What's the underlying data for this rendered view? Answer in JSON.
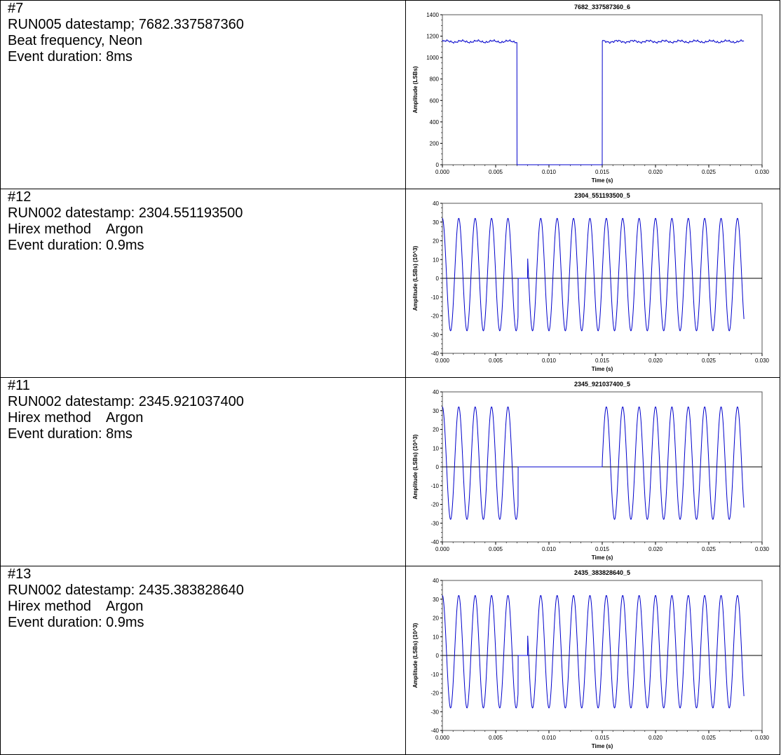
{
  "rows": [
    {
      "lines": [
        "#7",
        "RUN005 datestamp; 7682.337587360",
        "Beat frequency, Neon",
        "Event duration: 8ms"
      ]
    },
    {
      "lines": [
        "#12",
        "RUN002 datestamp: 2304.551193500",
        "Hirex method    Argon",
        "Event duration: 0.9ms"
      ]
    },
    {
      "lines": [
        "#11",
        "RUN002 datestamp: 2345.921037400",
        "Hirex method    Argon",
        "Event duration: 8ms"
      ]
    },
    {
      "lines": [
        "#13",
        "RUN002 datestamp: 2435.383828640",
        "Hirex method    Argon",
        "Event duration: 0.9ms"
      ]
    }
  ],
  "chart_data": [
    {
      "type": "line",
      "title": "7682_337587360_6",
      "xlabel": "Time (s)",
      "ylabel": "Amplitude (LSBs)",
      "xlim": [
        0,
        0.03
      ],
      "ylim": [
        0,
        1400
      ],
      "xticks": [
        "0.000",
        "0.005",
        "0.010",
        "0.015",
        "0.020",
        "0.025",
        "0.030"
      ],
      "yticks": [
        "0",
        "200",
        "400",
        "600",
        "800",
        "1000",
        "1200",
        "1400"
      ],
      "grid": false,
      "zero_line": false,
      "line_color": "#0000cc",
      "signal": "step",
      "level": 1150,
      "x_end": 0.0283,
      "gaps": [
        [
          0.007,
          0.015
        ]
      ]
    },
    {
      "type": "line",
      "title": "2304_551193500_5",
      "xlabel": "Time (s)",
      "ylabel": "Amplitude (LSBs) (10^3)",
      "xlim": [
        0,
        0.03
      ],
      "ylim": [
        -40,
        40
      ],
      "xticks": [
        "0.000",
        "0.005",
        "0.010",
        "0.015",
        "0.020",
        "0.025",
        "0.030"
      ],
      "yticks": [
        "-40",
        "-30",
        "-20",
        "-10",
        "0",
        "10",
        "20",
        "30",
        "40"
      ],
      "grid": false,
      "zero_line": true,
      "line_color": "#0000cc",
      "signal": "sine",
      "amplitude_max": 32,
      "amplitude_min": -28,
      "frequency_hz": 650,
      "x_end": 0.0283,
      "gaps": [
        [
          0.0071,
          0.008
        ]
      ]
    },
    {
      "type": "line",
      "title": "2345_921037400_5",
      "xlabel": "Time (s)",
      "ylabel": "Amplitude (LSBs) (10^3)",
      "xlim": [
        0,
        0.03
      ],
      "ylim": [
        -40,
        40
      ],
      "xticks": [
        "0.000",
        "0.005",
        "0.010",
        "0.015",
        "0.020",
        "0.025",
        "0.030"
      ],
      "yticks": [
        "-40",
        "-30",
        "-20",
        "-10",
        "0",
        "10",
        "20",
        "30",
        "40"
      ],
      "grid": false,
      "zero_line": true,
      "line_color": "#0000cc",
      "signal": "sine",
      "amplitude_max": 32,
      "amplitude_min": -28,
      "frequency_hz": 650,
      "x_end": 0.0283,
      "gaps": [
        [
          0.0071,
          0.015
        ]
      ]
    },
    {
      "type": "line",
      "title": "2435_383828640_5",
      "xlabel": "Time (s)",
      "ylabel": "Amplitude (LSBs) (10^3)",
      "xlim": [
        0,
        0.03
      ],
      "ylim": [
        -40,
        40
      ],
      "xticks": [
        "0.000",
        "0.005",
        "0.010",
        "0.015",
        "0.020",
        "0.025",
        "0.030"
      ],
      "yticks": [
        "-40",
        "-30",
        "-20",
        "-10",
        "0",
        "10",
        "20",
        "30",
        "40"
      ],
      "grid": false,
      "zero_line": true,
      "line_color": "#0000cc",
      "signal": "sine",
      "amplitude_max": 32,
      "amplitude_min": -28,
      "frequency_hz": 650,
      "x_end": 0.0283,
      "gaps": [
        [
          0.0071,
          0.008
        ]
      ]
    }
  ]
}
